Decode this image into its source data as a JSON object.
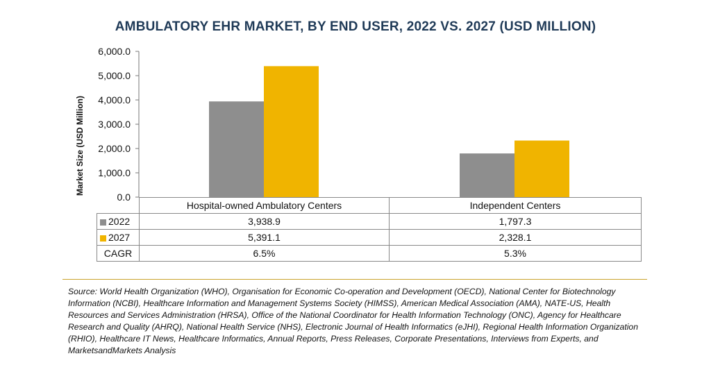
{
  "chart_data": {
    "type": "bar",
    "title": "AMBULATORY EHR MARKET, BY END USER, 2022 VS. 2027 (USD MILLION)",
    "ylabel": "Market Size (USD Million)",
    "ylim": [
      0,
      6000
    ],
    "yticks": [
      "0.0",
      "1,000.0",
      "2,000.0",
      "3,000.0",
      "4,000.0",
      "5,000.0",
      "6,000.0"
    ],
    "categories": [
      "Hospital-owned Ambulatory Centers",
      "Independent Centers"
    ],
    "series": [
      {
        "name": "2022",
        "color": "#8e8e8e",
        "values": [
          3938.9,
          1797.3
        ],
        "labels": [
          "3,938.9",
          "1,797.3"
        ]
      },
      {
        "name": "2027",
        "color": "#f0b400",
        "values": [
          5391.1,
          2328.1
        ],
        "labels": [
          "5,391.1",
          "2,328.1"
        ]
      }
    ],
    "cagr": {
      "label": "CAGR",
      "values": [
        "6.5%",
        "5.3%"
      ]
    },
    "grid": false
  },
  "source_text": "Source: World Health Organization (WHO), Organisation for Economic Co-operation and Development (OECD), National Center for Biotechnology Information (NCBI), Healthcare Information and Management Systems Society (HIMSS), American Medical Association (AMA), NATE-US, Health Resources and Services Administration (HRSA), Office of the National Coordinator for Health Information Technology (ONC), Agency for Healthcare Research and Quality (AHRQ), National Health Service (NHS), Electronic Journal of Health Informatics (eJHI), Regional Health Information Organization (RHIO), Healthcare IT News, Healthcare Informatics, Annual Reports, Press Releases, Corporate Presentations, Interviews from Experts, and MarketsandMarkets Analysis"
}
